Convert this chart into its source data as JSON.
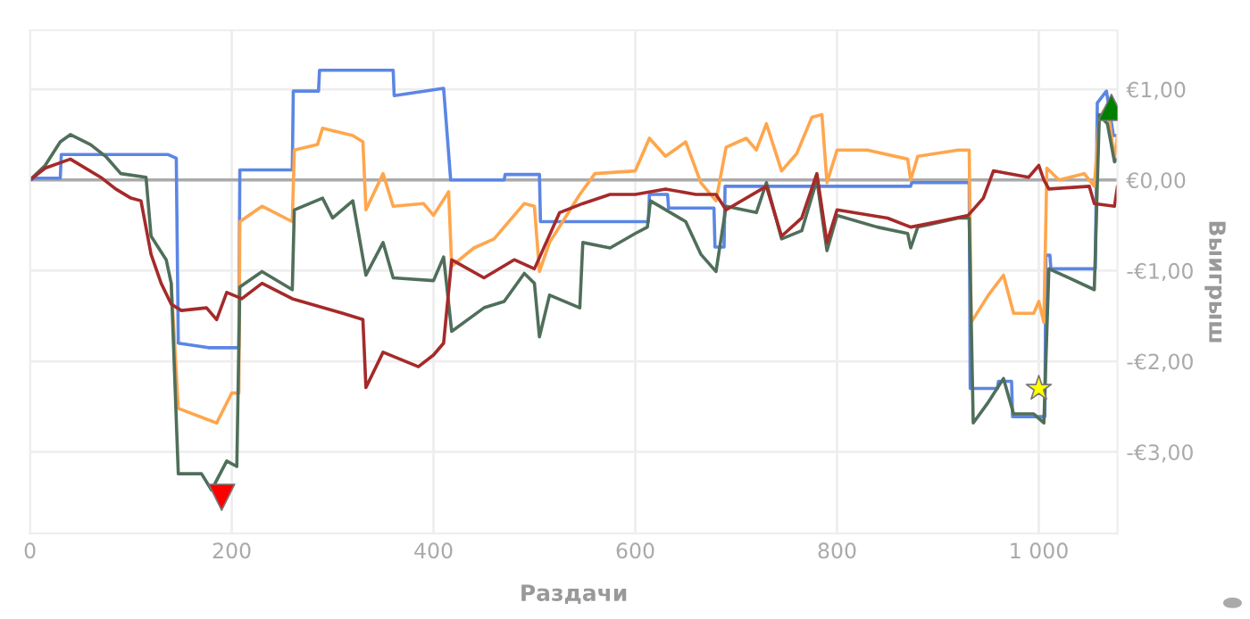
{
  "chart_data": {
    "type": "line",
    "xlabel": "Раздачи",
    "ylabel": "Выигрыш",
    "xlim": [
      0,
      1078
    ],
    "ylim": [
      -3.9,
      1.65
    ],
    "xticks": [
      0,
      200,
      400,
      600,
      800,
      {
        "value": 1000,
        "label": "1 000"
      }
    ],
    "yticks": [
      {
        "value": -3,
        "label": "-€3,00"
      },
      {
        "value": -2,
        "label": "-€2,00"
      },
      {
        "value": -1,
        "label": "-€1,00"
      },
      {
        "value": 0,
        "label": "€0,00"
      },
      {
        "value": 1,
        "label": "€1,00"
      }
    ],
    "grid": true,
    "legend": false,
    "line_style": "solid",
    "marker": "none",
    "ref_lines": [
      {
        "axis": "y",
        "value": 0,
        "color": "#aaaaaa"
      }
    ],
    "series": [
      {
        "color": "#5b86e5",
        "x": [
          0,
          5,
          30,
          31,
          137,
          145,
          147,
          177,
          207,
          208,
          260,
          261,
          286,
          287,
          360,
          361,
          410,
          417,
          470,
          471,
          505,
          506,
          613,
          614,
          632,
          633,
          678,
          679,
          688,
          689,
          873,
          874,
          931,
          932,
          959,
          960,
          973,
          974,
          1006,
          1007,
          1011,
          1012,
          1056,
          1058,
          1067,
          1074,
          1078
        ],
        "values": [
          0,
          0.02,
          0.02,
          0.28,
          0.28,
          0.24,
          -1.8,
          -1.85,
          -1.85,
          0.11,
          0.11,
          0.98,
          0.98,
          1.21,
          1.21,
          0.93,
          1.01,
          0,
          0,
          0.06,
          0.06,
          -0.46,
          -0.46,
          -0.16,
          -0.16,
          -0.31,
          -0.31,
          -0.74,
          -0.74,
          -0.07,
          -0.07,
          -0.03,
          -0.03,
          -2.3,
          -2.3,
          -2.22,
          -2.22,
          -2.61,
          -2.61,
          -0.83,
          -0.83,
          -0.98,
          -0.98,
          0.85,
          0.98,
          0.49,
          0.49
        ]
      },
      {
        "color": "#ffa64d",
        "x": [
          140,
          147,
          185,
          200,
          207,
          208,
          230,
          260,
          262,
          285,
          290,
          320,
          330,
          333,
          350,
          360,
          390,
          400,
          415,
          418,
          440,
          460,
          490,
          500,
          505,
          515,
          545,
          560,
          600,
          614,
          630,
          650,
          665,
          680,
          690,
          710,
          720,
          730,
          745,
          760,
          775,
          785,
          790,
          800,
          830,
          870,
          873,
          880,
          920,
          931,
          933,
          950,
          965,
          975,
          995,
          1000,
          1005,
          1008,
          1020,
          1045,
          1055,
          1060,
          1068,
          1075,
          1078
        ],
        "values": [
          -1.14,
          -2.52,
          -2.68,
          -2.35,
          -2.35,
          -0.46,
          -0.29,
          -0.46,
          0.33,
          0.39,
          0.57,
          0.49,
          0.42,
          -0.33,
          0.07,
          -0.29,
          -0.26,
          -0.39,
          -0.13,
          -0.95,
          -0.75,
          -0.65,
          -0.26,
          -0.29,
          -1.01,
          -0.69,
          -0.16,
          0.07,
          0.1,
          0.46,
          0.26,
          0.42,
          -0.03,
          -0.23,
          0.36,
          0.46,
          0.33,
          0.62,
          0.1,
          0.29,
          0.69,
          0.72,
          -0.03,
          0.33,
          0.33,
          0.23,
          0,
          0.26,
          0.33,
          0.33,
          -1.57,
          -1.27,
          -1.05,
          -1.47,
          -1.47,
          -1.34,
          -1.57,
          0.13,
          0,
          0.07,
          -0.07,
          0.69,
          0.82,
          0.23,
          0.49
        ]
      },
      {
        "color": "#4f6f5a",
        "x": [
          0,
          15,
          30,
          40,
          60,
          75,
          90,
          115,
          120,
          135,
          140,
          147,
          170,
          180,
          195,
          205,
          208,
          230,
          260,
          262,
          290,
          300,
          320,
          333,
          350,
          360,
          400,
          410,
          418,
          450,
          470,
          490,
          500,
          505,
          515,
          545,
          548,
          575,
          600,
          612,
          615,
          650,
          665,
          680,
          690,
          720,
          730,
          745,
          765,
          780,
          790,
          800,
          840,
          870,
          873,
          880,
          920,
          931,
          935,
          950,
          965,
          975,
          995,
          1005,
          1010,
          1030,
          1055,
          1060,
          1068,
          1075,
          1078
        ],
        "values": [
          0,
          0.16,
          0.42,
          0.5,
          0.39,
          0.26,
          0.07,
          0.03,
          -0.62,
          -0.88,
          -1.14,
          -3.24,
          -3.24,
          -3.42,
          -3.1,
          -3.16,
          -1.18,
          -1.01,
          -1.21,
          -0.33,
          -0.2,
          -0.42,
          -0.23,
          -1.05,
          -0.69,
          -1.08,
          -1.11,
          -0.85,
          -1.67,
          -1.41,
          -1.34,
          -1.03,
          -1.14,
          -1.73,
          -1.27,
          -1.41,
          -0.69,
          -0.75,
          -0.59,
          -0.52,
          -0.23,
          -0.46,
          -0.82,
          -1.01,
          -0.29,
          -0.36,
          -0.03,
          -0.65,
          -0.56,
          0,
          -0.78,
          -0.39,
          -0.52,
          -0.59,
          -0.75,
          -0.52,
          -0.42,
          -0.42,
          -2.68,
          -2.45,
          -2.19,
          -2.58,
          -2.58,
          -2.68,
          -0.98,
          -1.08,
          -1.21,
          0.72,
          0.62,
          0.2,
          0.23
        ]
      },
      {
        "color": "#a52a2a",
        "x": [
          0,
          15,
          40,
          70,
          85,
          100,
          110,
          120,
          130,
          140,
          150,
          175,
          185,
          195,
          210,
          230,
          260,
          310,
          330,
          333,
          350,
          385,
          400,
          410,
          418,
          450,
          480,
          500,
          525,
          548,
          575,
          600,
          630,
          660,
          680,
          690,
          730,
          745,
          765,
          780,
          790,
          800,
          850,
          873,
          900,
          930,
          945,
          955,
          990,
          1000,
          1005,
          1010,
          1050,
          1055,
          1075,
          1078
        ],
        "values": [
          0,
          0.13,
          0.23,
          0.03,
          -0.1,
          -0.2,
          -0.23,
          -0.82,
          -1.14,
          -1.37,
          -1.44,
          -1.41,
          -1.54,
          -1.24,
          -1.31,
          -1.14,
          -1.31,
          -1.47,
          -1.54,
          -2.29,
          -1.9,
          -2.06,
          -1.93,
          -1.8,
          -0.88,
          -1.08,
          -0.88,
          -0.98,
          -0.36,
          -0.26,
          -0.16,
          -0.16,
          -0.1,
          -0.16,
          -0.16,
          -0.33,
          -0.07,
          -0.62,
          -0.42,
          0.07,
          -0.69,
          -0.33,
          -0.42,
          -0.52,
          -0.46,
          -0.39,
          -0.2,
          0.1,
          0.03,
          0.16,
          0,
          -0.1,
          -0.07,
          -0.26,
          -0.29,
          -0.07
        ]
      },
      {
        "type": "scatter",
        "marker": "triangle_down",
        "color": "#ff0000",
        "x": [
          190
        ],
        "values": [
          -3.5
        ]
      },
      {
        "type": "scatter",
        "marker": "triangle",
        "color": "#008000",
        "x": [
          1072
        ],
        "values": [
          0.8
        ]
      },
      {
        "type": "scatter",
        "marker": "star",
        "color": "#ffff00",
        "x": [
          1000
        ],
        "values": [
          -2.3
        ]
      }
    ]
  }
}
